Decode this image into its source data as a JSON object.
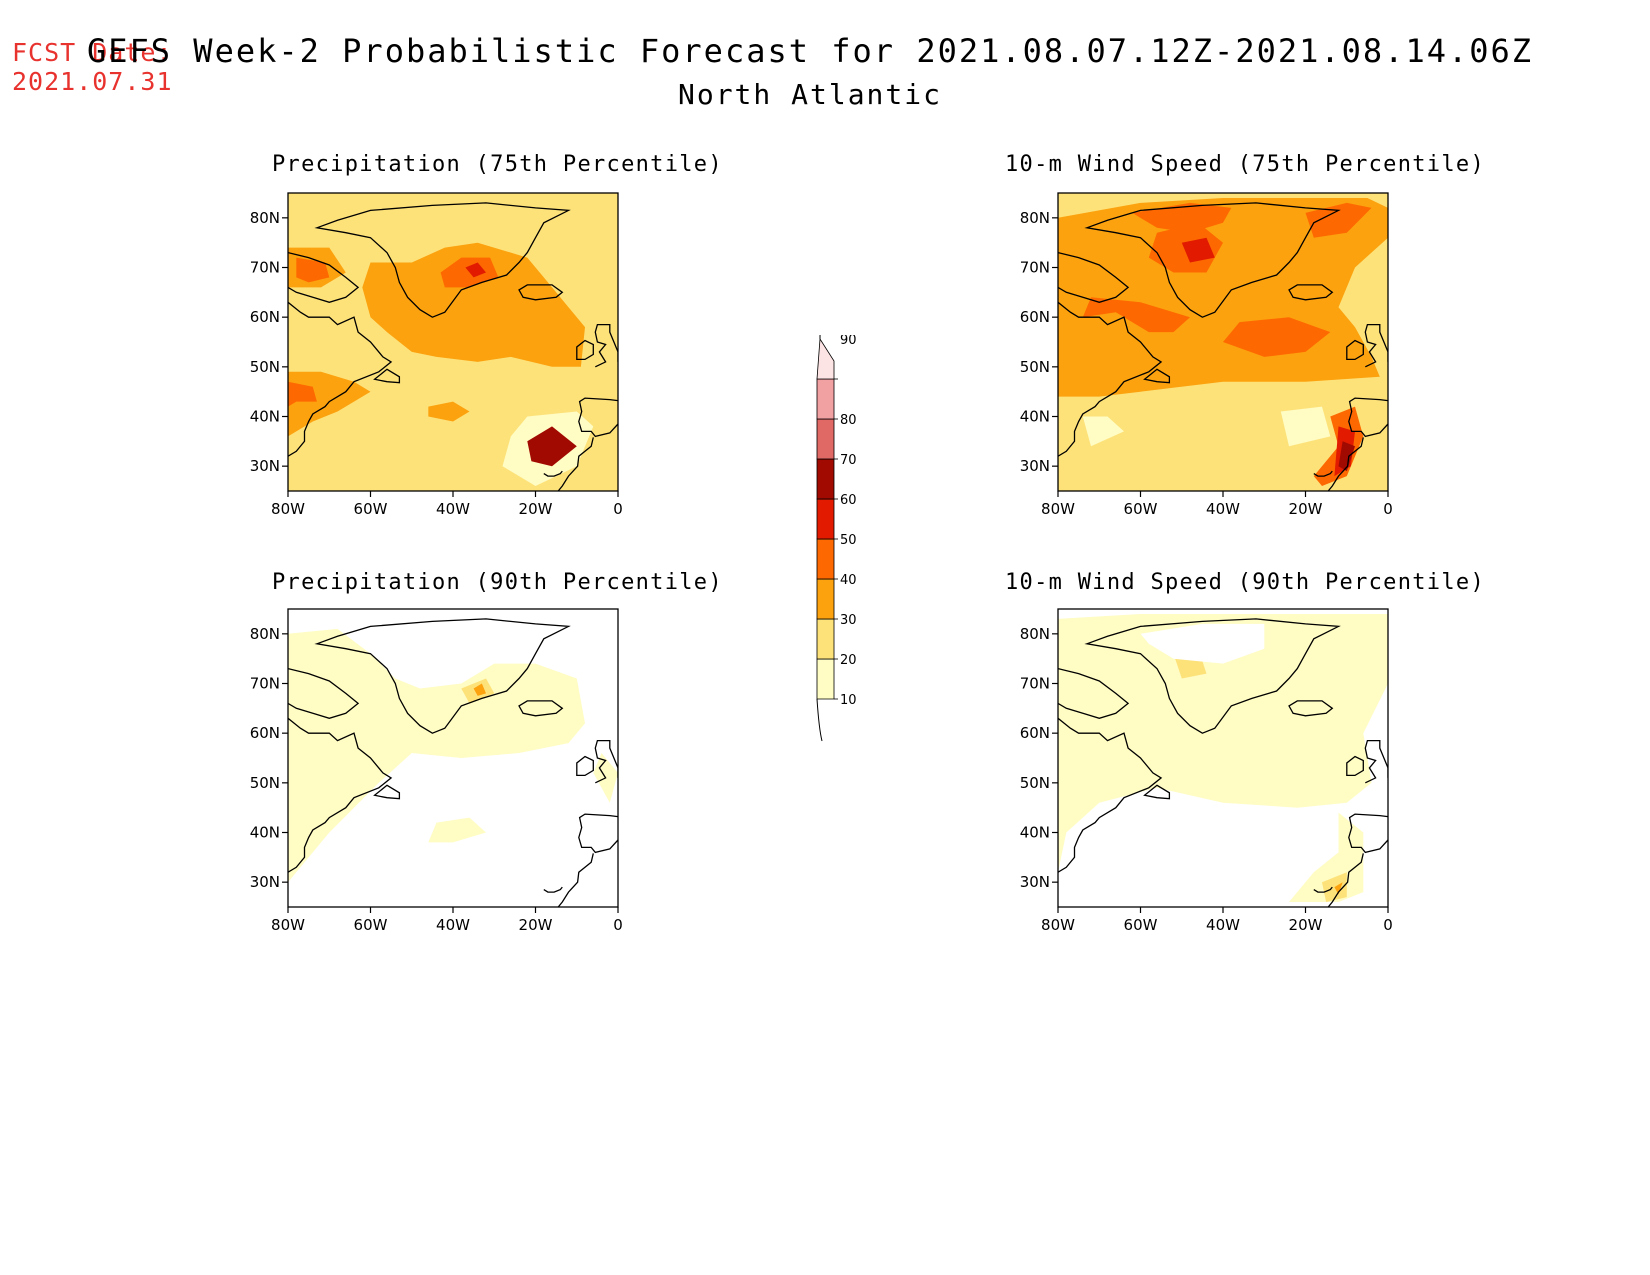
{
  "header": {
    "fcst_label": "FCST Date:",
    "fcst_date": "2021.07.31",
    "title": "GEFS Week-2 Probabilistic Forecast for 2021.08.07.12Z-2021.08.14.06Z",
    "subtitle": "North Atlantic"
  },
  "axes": {
    "lat_ticks": [
      "80N",
      "70N",
      "60N",
      "50N",
      "40N",
      "30N"
    ],
    "lon_ticks": [
      "80W",
      "60W",
      "40W",
      "20W",
      "0"
    ]
  },
  "colorbar": {
    "levels": [
      "10",
      "20",
      "30",
      "40",
      "50",
      "60",
      "70",
      "80",
      "90"
    ],
    "colors": [
      "#fffcc4",
      "#fde27a",
      "#fca20e",
      "#fe6800",
      "#e11a00",
      "#a10a00",
      "#e06865",
      "#f2a1a3",
      "#fde4e4"
    ]
  },
  "panels": [
    {
      "title": "Precipitation (75th Percentile)",
      "field": "precip75"
    },
    {
      "title": "10-m Wind Speed (75th Percentile)",
      "field": "wind75"
    },
    {
      "title": "Precipitation (90th Percentile)",
      "field": "precip90"
    },
    {
      "title": "10-m Wind Speed (90th Percentile)",
      "field": "wind90"
    }
  ]
}
